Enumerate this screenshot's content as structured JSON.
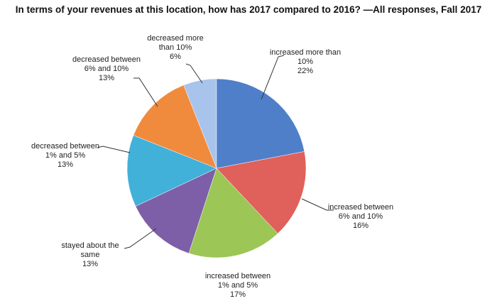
{
  "chart_data": {
    "type": "pie",
    "title": "In terms of your revenues at this location, how has 2017 compared to 2016? —All responses, Fall 2017",
    "categories": [
      "increased more than 10%",
      "increased between 6% and 10%",
      "increased between 1% and 5%",
      "stayed about the same",
      "decreased between 1% and 5%",
      "decreased between 6% and 10%",
      "decreased more than 10%"
    ],
    "values": [
      22,
      16,
      17,
      13,
      13,
      13,
      6
    ],
    "value_labels": [
      "22%",
      "16%",
      "17%",
      "13%",
      "13%",
      "13%",
      "6%"
    ],
    "colors": [
      "#4f7fc9",
      "#e0605b",
      "#9cc655",
      "#7d5fa8",
      "#41b1d9",
      "#f08b3d",
      "#a8c4ec"
    ]
  }
}
